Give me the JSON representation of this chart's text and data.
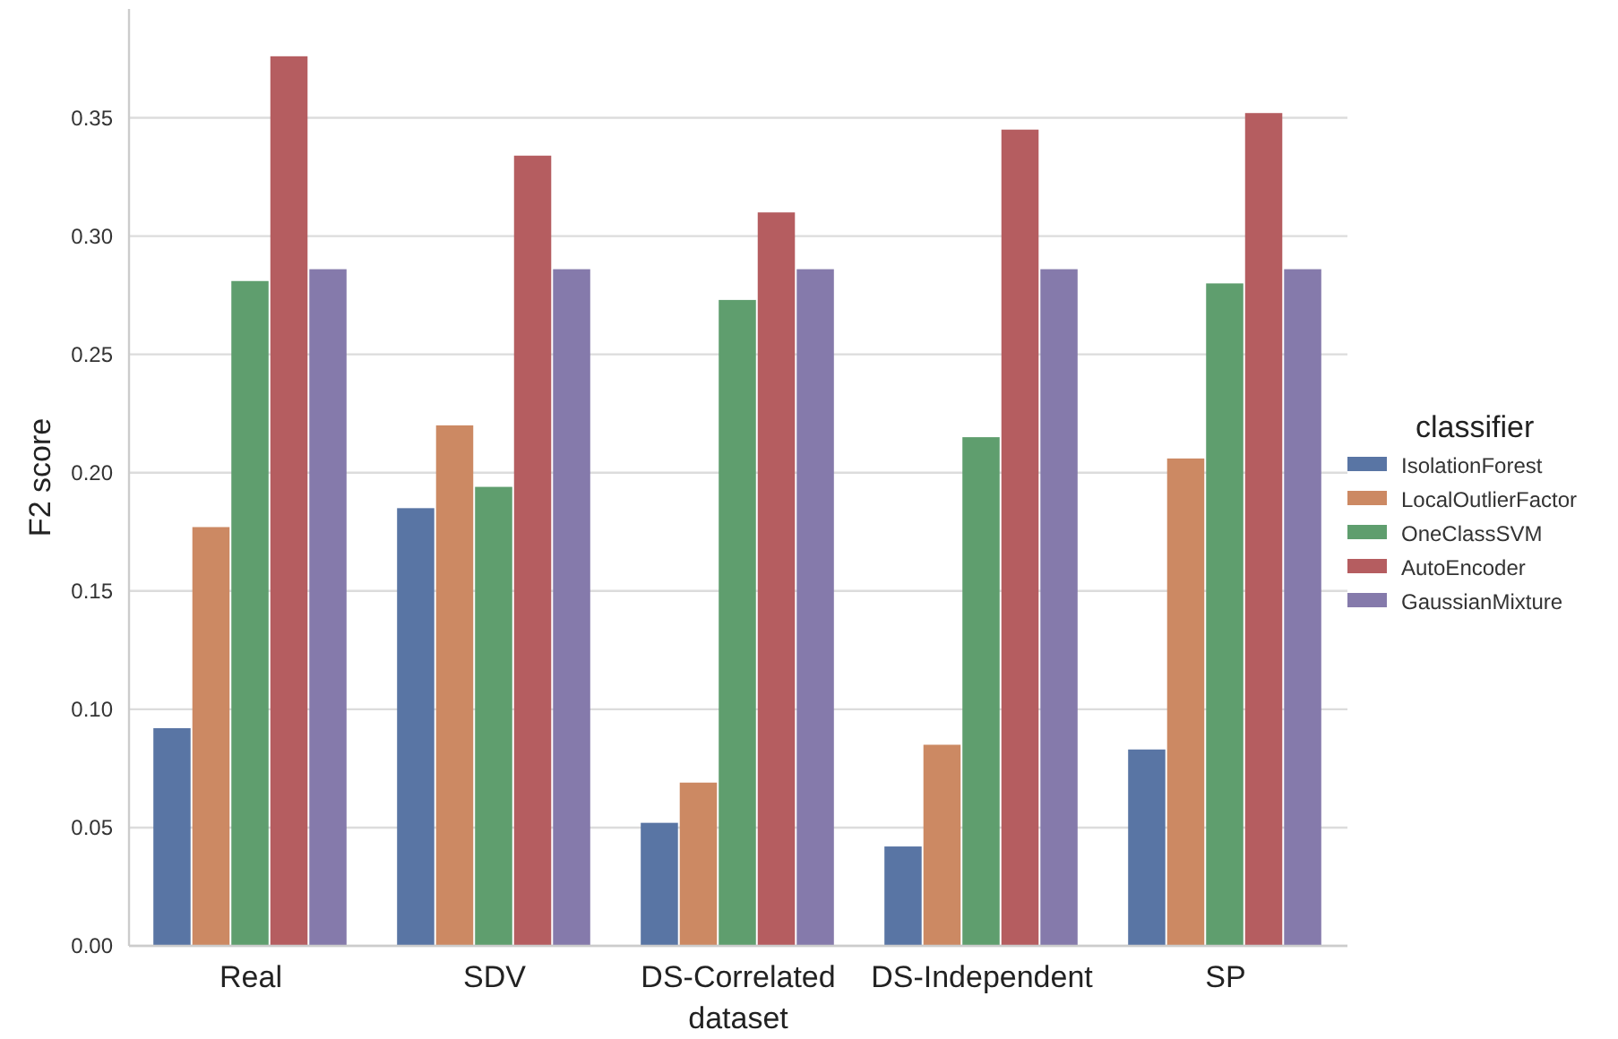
{
  "chart_data": {
    "type": "bar",
    "xlabel": "dataset",
    "ylabel": "F2 score",
    "legend_title": "classifier",
    "legend": "right",
    "grid": "y",
    "categories": [
      "Real",
      "SDV",
      "DS-Correlated",
      "DS-Independent",
      "SP"
    ],
    "ylim": [
      0,
      0.396
    ],
    "yticks": [
      {
        "value": 0,
        "label": "0.00"
      },
      {
        "value": 0.05,
        "label": "0.05"
      },
      {
        "value": 0.1,
        "label": "0.10"
      },
      {
        "value": 0.15,
        "label": "0.15"
      },
      {
        "value": 0.2,
        "label": "0.20"
      },
      {
        "value": 0.25,
        "label": "0.25"
      },
      {
        "value": 0.3,
        "label": "0.30"
      },
      {
        "value": 0.35,
        "label": "0.35"
      }
    ],
    "series": [
      {
        "name": "IsolationForest",
        "color": "#5975a4",
        "values": [
          0.092,
          0.185,
          0.052,
          0.042,
          0.083
        ]
      },
      {
        "name": "LocalOutlierFactor",
        "color": "#cc8963",
        "values": [
          0.177,
          0.22,
          0.069,
          0.085,
          0.206
        ]
      },
      {
        "name": "OneClassSVM",
        "color": "#5f9e6e",
        "values": [
          0.281,
          0.194,
          0.273,
          0.215,
          0.28
        ]
      },
      {
        "name": "AutoEncoder",
        "color": "#b55d60",
        "values": [
          0.376,
          0.334,
          0.31,
          0.345,
          0.352
        ]
      },
      {
        "name": "GaussianMixture",
        "color": "#857aab",
        "values": [
          0.286,
          0.286,
          0.286,
          0.286,
          0.286
        ]
      }
    ]
  }
}
